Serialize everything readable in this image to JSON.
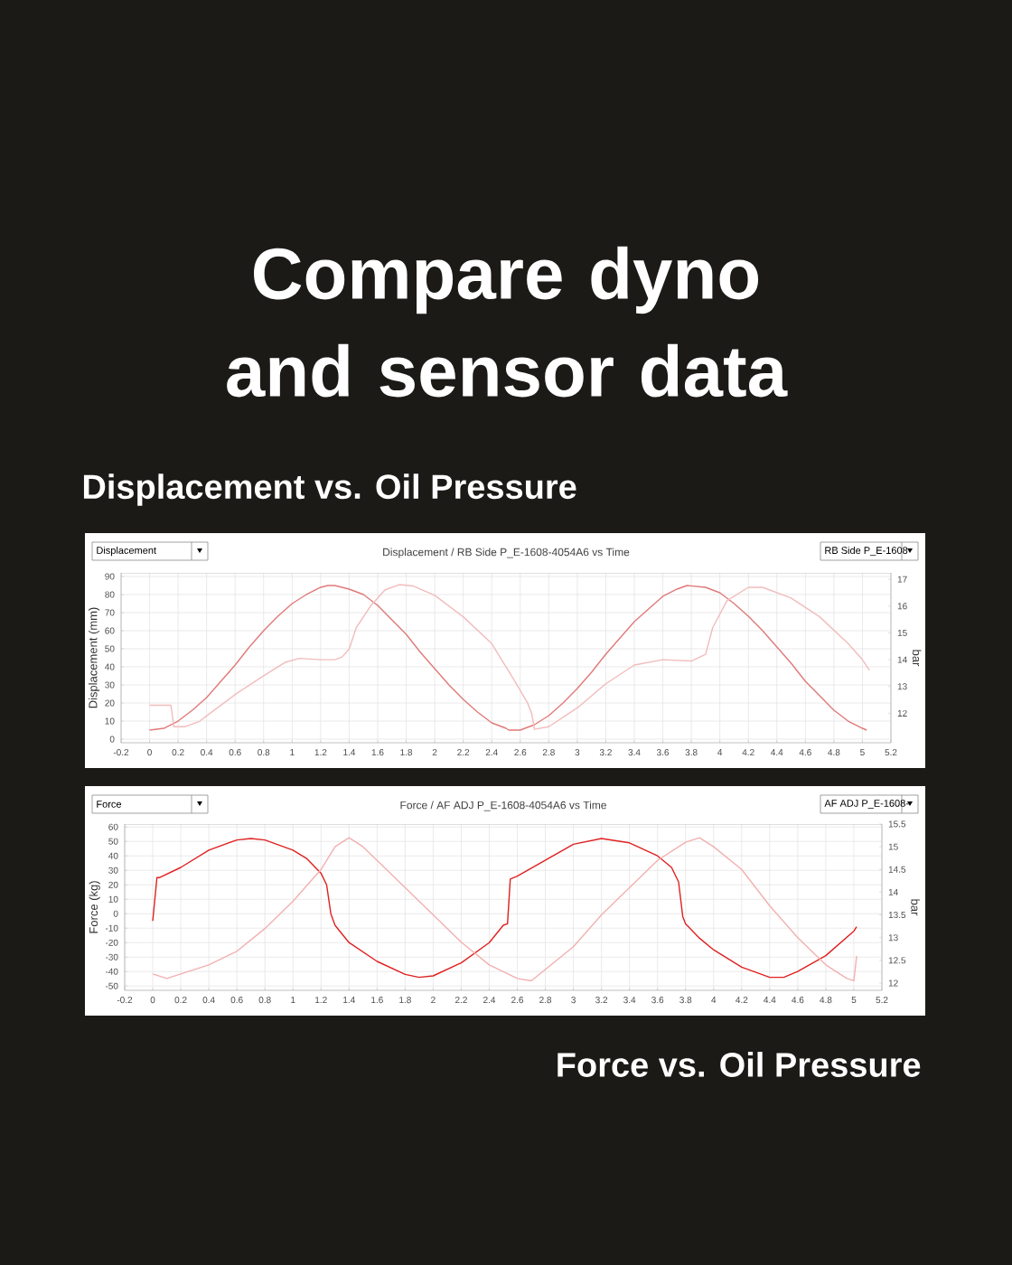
{
  "chart_data": [
    {
      "type": "line",
      "title": "Displacement vs. Oil Pressure",
      "subtitle": "Displacement / RB Side P_E-1608-4054A6   vs Time",
      "ylabel": "Displacement (mm)",
      "y2label": "bar",
      "xlim": [
        -0.2,
        5.2
      ],
      "xticks": [
        -0.2,
        0,
        0.2,
        0.4,
        0.6,
        0.8,
        1,
        1.2,
        1.4,
        1.6,
        1.8,
        2,
        2.2,
        2.4,
        2.6,
        2.8,
        3,
        3.2,
        3.4,
        3.6,
        3.8,
        4,
        4.2,
        4.4,
        4.6,
        4.8,
        5,
        5.2
      ],
      "ylim": [
        -2,
        92
      ],
      "yticks": [
        0,
        10,
        20,
        30,
        40,
        50,
        60,
        70,
        80,
        90
      ],
      "y2lim": [
        10.9,
        17.24
      ],
      "y2ticks": [
        12,
        13,
        14,
        15,
        16,
        17
      ],
      "grid": true,
      "series": [
        {
          "color": "#e07a7a",
          "x": [
            0,
            0.1,
            0.2,
            0.3,
            0.4,
            0.5,
            0.6,
            0.7,
            0.8,
            0.9,
            1.0,
            1.1,
            1.2,
            1.25,
            1.3,
            1.4,
            1.5,
            1.6,
            1.7,
            1.8,
            1.9,
            2.0,
            2.1,
            2.2,
            2.3,
            2.4,
            2.5,
            2.52,
            2.6,
            2.7,
            2.8,
            2.9,
            3.0,
            3.1,
            3.2,
            3.3,
            3.4,
            3.5,
            3.6,
            3.7,
            3.77,
            3.9,
            4.0,
            4.1,
            4.2,
            4.3,
            4.4,
            4.5,
            4.6,
            4.7,
            4.8,
            4.9,
            5.0,
            5.03
          ],
          "values": [
            5,
            6,
            10,
            16,
            23,
            32,
            41,
            51,
            60,
            68,
            75,
            80,
            84,
            85,
            85,
            83,
            80,
            74,
            66,
            58,
            48,
            39,
            30,
            22,
            15,
            9,
            6,
            5,
            5,
            8,
            13,
            20,
            28,
            37,
            47,
            56,
            65,
            72,
            79,
            83,
            85,
            84,
            81,
            75,
            68,
            60,
            51,
            42,
            32,
            24,
            16,
            10,
            6,
            5
          ]
        },
        {
          "color": "#f2bcbc",
          "axis": "y2",
          "x": [
            0,
            0.15,
            0.17,
            0.25,
            0.35,
            0.45,
            0.6,
            0.8,
            0.95,
            1.05,
            1.2,
            1.3,
            1.35,
            1.4,
            1.45,
            1.55,
            1.65,
            1.75,
            1.85,
            2.0,
            2.2,
            2.4,
            2.55,
            2.65,
            2.68,
            2.7,
            2.8,
            3.0,
            3.2,
            3.4,
            3.6,
            3.8,
            3.9,
            3.95,
            4.05,
            4.2,
            4.3,
            4.5,
            4.7,
            4.9,
            5.0,
            5.05
          ],
          "values": [
            12.3,
            12.3,
            11.5,
            11.5,
            11.7,
            12.1,
            12.7,
            13.4,
            13.9,
            14.05,
            14.0,
            14.0,
            14.1,
            14.4,
            15.2,
            16.0,
            16.6,
            16.8,
            16.75,
            16.4,
            15.6,
            14.6,
            13.3,
            12.4,
            12.0,
            11.4,
            11.5,
            12.2,
            13.1,
            13.8,
            14.0,
            13.95,
            14.2,
            15.2,
            16.2,
            16.7,
            16.7,
            16.3,
            15.6,
            14.6,
            14.0,
            13.6
          ]
        }
      ],
      "annotations": [
        "Compare dyno and sensor data",
        "Displacement",
        "RB Side P_E-1608"
      ]
    },
    {
      "type": "line",
      "title": "Force vs. Oil Pressure",
      "subtitle": "Force / AF ADJ P_E-1608-4054A6   vs Time",
      "ylabel": "Force (kg)",
      "y2label": "bar",
      "xlim": [
        -0.2,
        5.2
      ],
      "xticks": [
        -0.2,
        0,
        0.2,
        0.4,
        0.6,
        0.8,
        1,
        1.2,
        1.4,
        1.6,
        1.8,
        2,
        2.2,
        2.4,
        2.6,
        2.8,
        3,
        3.2,
        3.4,
        3.6,
        3.8,
        4,
        4.2,
        4.4,
        4.6,
        4.8,
        5,
        5.2
      ],
      "ylim": [
        -53,
        62
      ],
      "yticks": [
        -50,
        -40,
        -30,
        -20,
        -10,
        0,
        10,
        20,
        30,
        40,
        50,
        60
      ],
      "y2lim": [
        11.84,
        15.5
      ],
      "y2ticks": [
        12,
        12.5,
        13,
        13.5,
        14,
        14.5,
        15,
        15.5
      ],
      "grid": true,
      "series": [
        {
          "color": "#e02020",
          "x": [
            0,
            0.03,
            0.05,
            0.2,
            0.4,
            0.6,
            0.7,
            0.8,
            1.0,
            1.1,
            1.2,
            1.24,
            1.27,
            1.3,
            1.4,
            1.6,
            1.8,
            1.9,
            2.0,
            2.2,
            2.4,
            2.5,
            2.53,
            2.55,
            2.6,
            2.8,
            3.0,
            3.2,
            3.4,
            3.6,
            3.7,
            3.75,
            3.78,
            3.8,
            3.9,
            4.0,
            4.2,
            4.4,
            4.5,
            4.6,
            4.8,
            5.0,
            5.02
          ],
          "values": [
            -5,
            25,
            25,
            32,
            44,
            51,
            52,
            51,
            44,
            38,
            28,
            20,
            0,
            -8,
            -20,
            -33,
            -42,
            -44,
            -43,
            -34,
            -20,
            -8,
            -7,
            24,
            26,
            37,
            48,
            52,
            49,
            40,
            32,
            22,
            -2,
            -7,
            -17,
            -25,
            -37,
            -44,
            -44,
            -40,
            -29,
            -12,
            -9
          ]
        },
        {
          "color": "#f2b0b0",
          "axis": "y2",
          "x": [
            0,
            0.1,
            0.2,
            0.4,
            0.6,
            0.8,
            1.0,
            1.2,
            1.3,
            1.4,
            1.5,
            1.6,
            1.8,
            2.0,
            2.2,
            2.4,
            2.6,
            2.7,
            2.8,
            3.0,
            3.2,
            3.4,
            3.6,
            3.8,
            3.9,
            4.0,
            4.2,
            4.4,
            4.6,
            4.8,
            4.95,
            5.0,
            5.02
          ],
          "values": [
            12.2,
            12.1,
            12.2,
            12.4,
            12.7,
            13.2,
            13.8,
            14.5,
            15.0,
            15.2,
            15.0,
            14.7,
            14.1,
            13.5,
            12.9,
            12.4,
            12.1,
            12.05,
            12.3,
            12.8,
            13.5,
            14.1,
            14.7,
            15.1,
            15.2,
            15.0,
            14.5,
            13.7,
            13.0,
            12.4,
            12.1,
            12.05,
            12.6
          ]
        }
      ],
      "annotations": [
        "Force",
        "AF ADJ P_E-1608-"
      ]
    }
  ]
}
